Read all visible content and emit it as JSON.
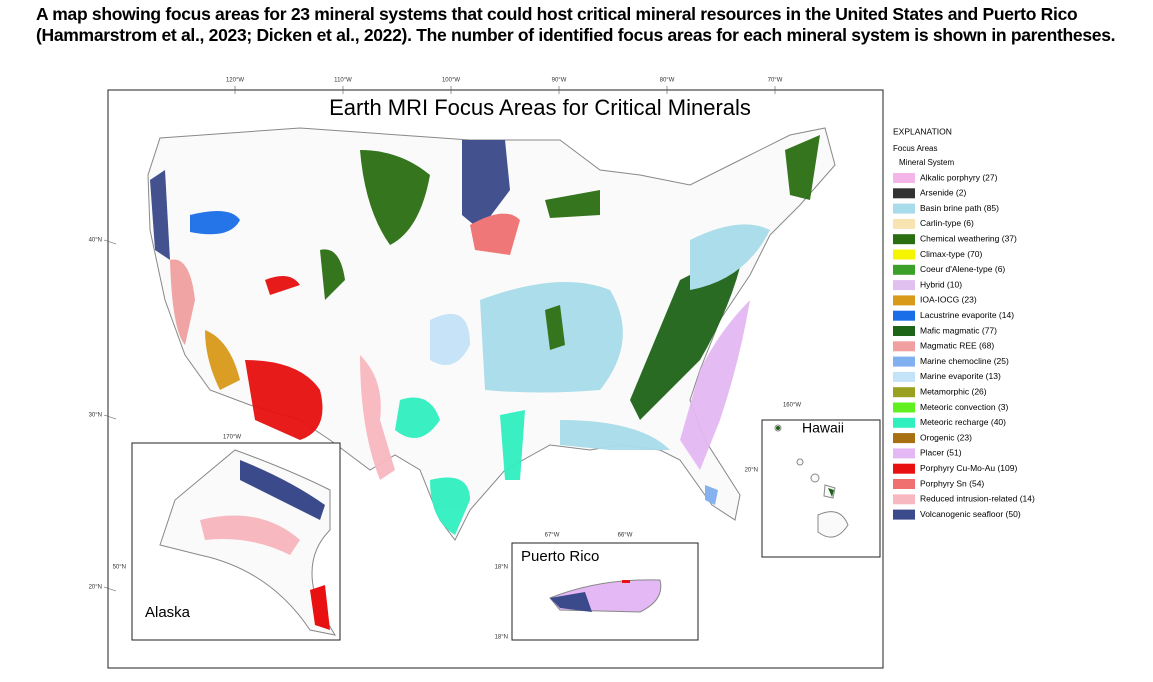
{
  "caption": "A map showing focus areas for 23 mineral systems that could host critical mineral resources in the United States and Puerto Rico (Hammarstrom et al., 2023; Dicken et al., 2022). The number of identified focus areas for each mineral system is shown in parentheses.",
  "map": {
    "title": "Earth MRI Focus Areas for Critical Minerals",
    "longitude_labels": [
      "120°W",
      "110°W",
      "100°W",
      "90°W",
      "80°W",
      "70°W"
    ],
    "latitude_labels": [
      "40°N",
      "30°N",
      "20°N"
    ]
  },
  "legend": {
    "heading": "EXPLANATION",
    "subheading": "Focus Areas",
    "group": "Mineral System",
    "items": [
      {
        "label": "Alkalic porphyry (27)",
        "color": "#f4b6e8"
      },
      {
        "label": "Arsenide (2)",
        "color": "#333333"
      },
      {
        "label": "Basin brine path (85)",
        "color": "#a8dcea"
      },
      {
        "label": "Carlin-type (6)",
        "color": "#f7e4b0"
      },
      {
        "label": "Chemical weathering (37)",
        "color": "#2a6e12"
      },
      {
        "label": "Climax-type (70)",
        "color": "#f5f500"
      },
      {
        "label": "Coeur d'Alene-type (6)",
        "color": "#3aa02a"
      },
      {
        "label": "Hybrid  (10)",
        "color": "#e0c0f0"
      },
      {
        "label": "IOA-IOCG (23)",
        "color": "#d99a1a"
      },
      {
        "label": "Lacustrine evaporite (14)",
        "color": "#1a6ee8"
      },
      {
        "label": "Mafic magmatic (77)",
        "color": "#1e6418"
      },
      {
        "label": "Magmatic REE (68)",
        "color": "#f0a0a0"
      },
      {
        "label": "Marine chemocline (25)",
        "color": "#80b0f0"
      },
      {
        "label": "Marine evaporite (13)",
        "color": "#c4e2f8"
      },
      {
        "label": "Metamorphic (26)",
        "color": "#9aa020"
      },
      {
        "label": "Meteoric convection (3)",
        "color": "#60f020"
      },
      {
        "label": "Meteoric recharge (40)",
        "color": "#30f0c0"
      },
      {
        "label": "Orogenic (23)",
        "color": "#a87010"
      },
      {
        "label": "Placer (51)",
        "color": "#e4b8f4"
      },
      {
        "label": "Porphyry Cu-Mo-Au (109)",
        "color": "#e81010"
      },
      {
        "label": "Porphyry Sn (54)",
        "color": "#f07070"
      },
      {
        "label": "Reduced intrusion-related (14)",
        "color": "#f8b8c0"
      },
      {
        "label": "Volcanogenic seafloor (50)",
        "color": "#3a4a8a"
      }
    ]
  },
  "insets": {
    "alaska": {
      "label": "Alaska",
      "longitude": "170°W",
      "latitude": "50°N"
    },
    "puerto_rico": {
      "label": "Puerto Rico",
      "longitudes": [
        "67°W",
        "66°W"
      ],
      "latitudes": [
        "18°N",
        "18°N"
      ]
    },
    "hawaii": {
      "label": "Hawaii",
      "longitude": "160°W",
      "latitude": "20°N"
    }
  }
}
